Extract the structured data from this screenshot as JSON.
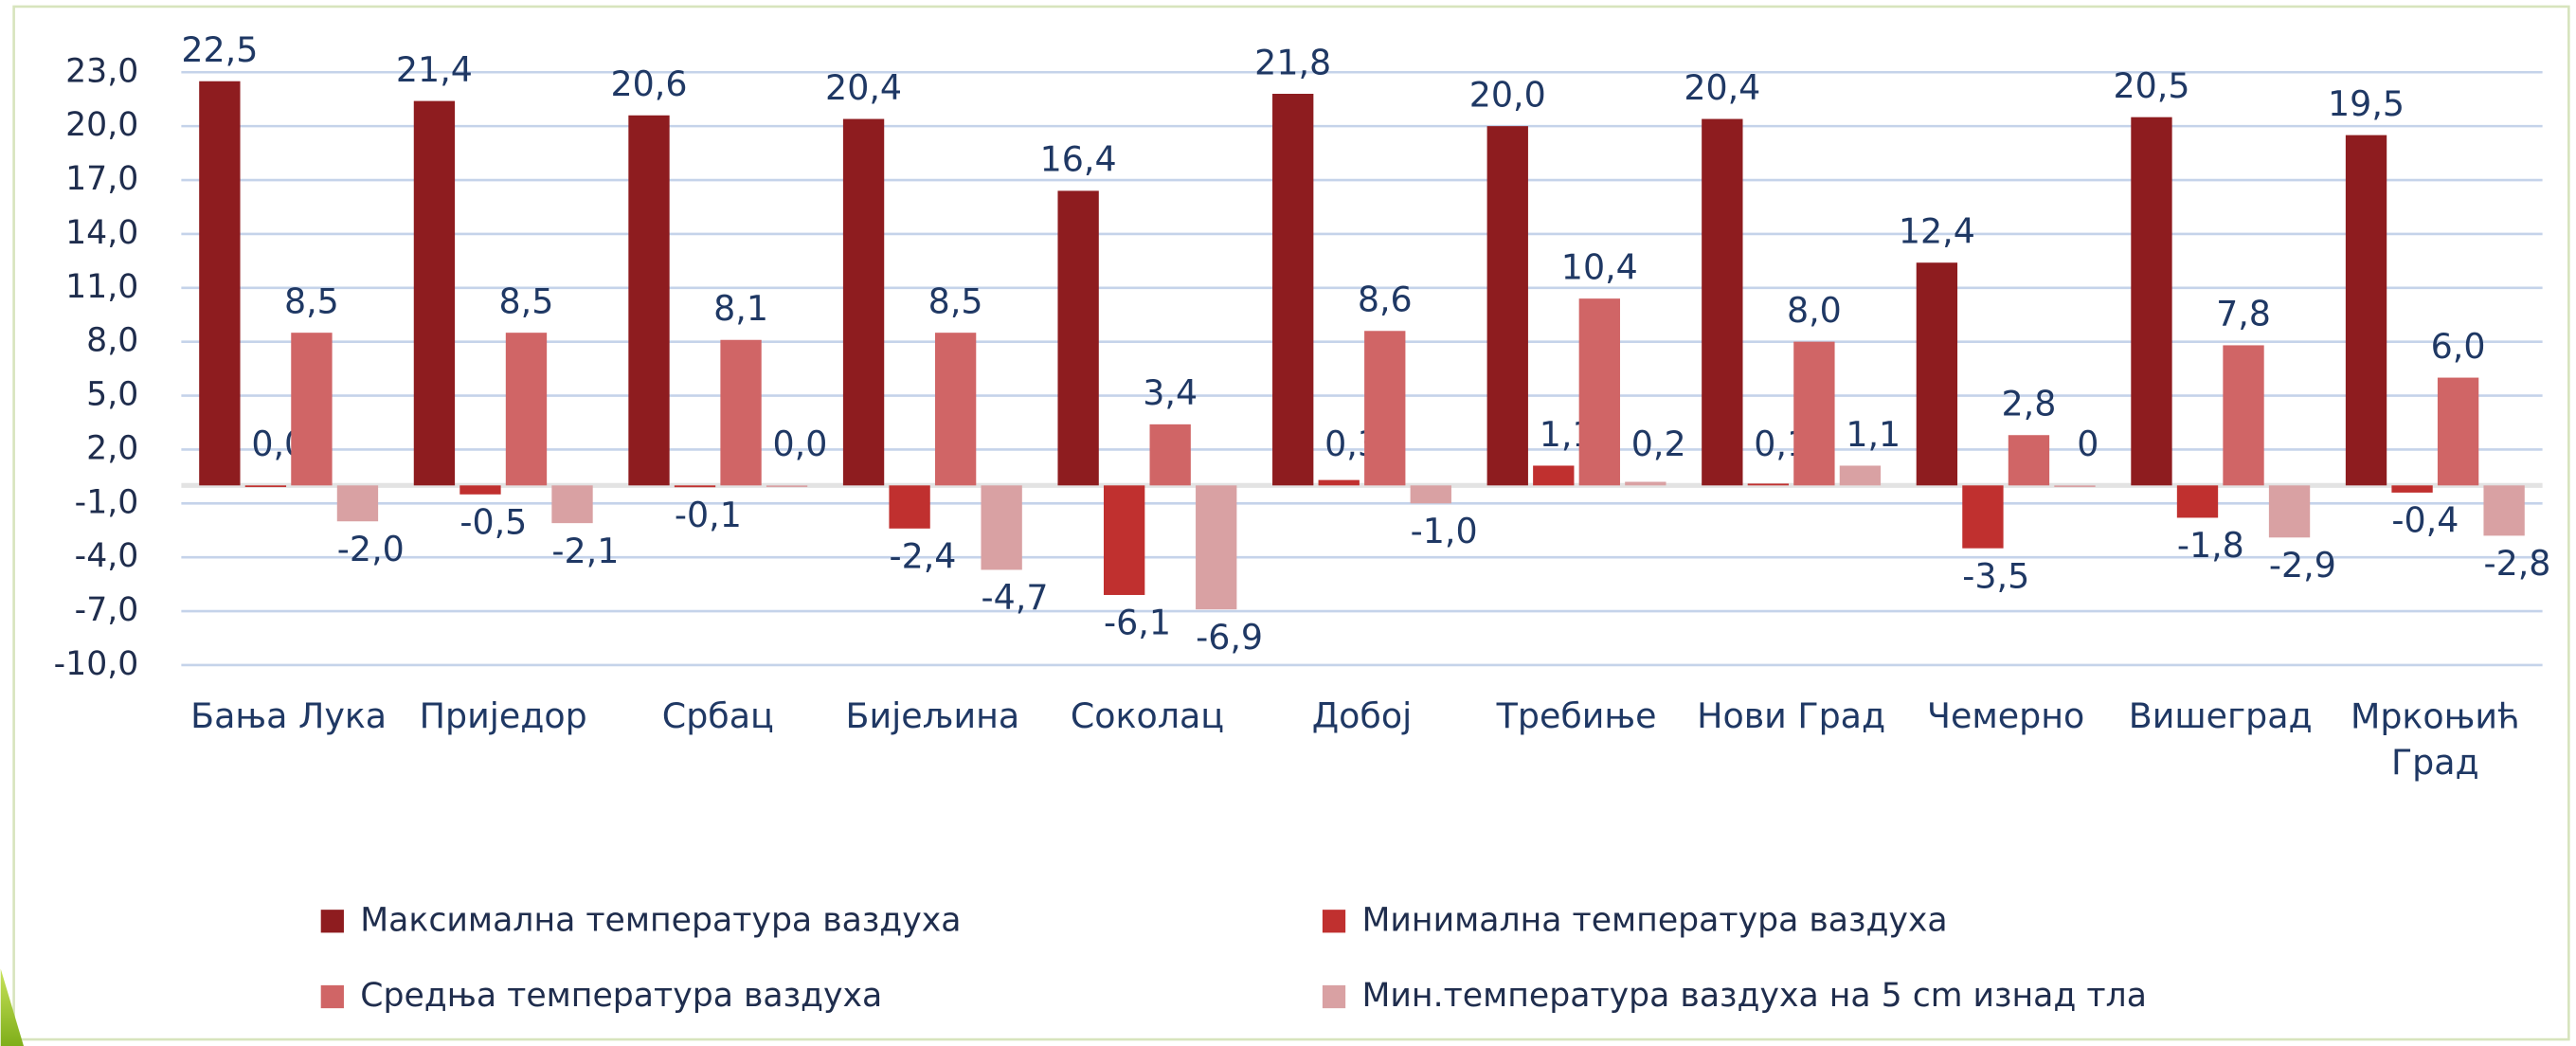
{
  "chart_data": {
    "type": "bar",
    "categories": [
      "Бања Лука",
      "Приједор",
      "Србац",
      "Бијељина",
      "Соколац",
      "Добој",
      "Требиње",
      "Нови Град",
      "Чемерно",
      "Вишеград",
      "Мркоњић Град"
    ],
    "series": [
      {
        "name": "Максимална температура ваздуха",
        "color": "#8e1c1f",
        "values": [
          22.5,
          21.4,
          20.6,
          20.4,
          16.4,
          21.8,
          20.0,
          20.4,
          12.4,
          20.5,
          19.5
        ],
        "value_labels": [
          "22,5",
          "21,4",
          "20,6",
          "20,4",
          "16,4",
          "21,8",
          "20,0",
          "20,4",
          "12,4",
          "20,5",
          "19,5"
        ]
      },
      {
        "name": "Минимална температура ваздуха",
        "color": "#c0302f",
        "values": [
          0.0,
          -0.5,
          -0.1,
          -2.4,
          -6.1,
          0.3,
          1.1,
          0.1,
          -3.5,
          -1.8,
          -0.4
        ],
        "value_labels": [
          "0,0",
          "-0,5",
          "-0,1",
          "-2,4",
          "-6,1",
          "0,3",
          "1,1",
          "0,1",
          "-3,5",
          "-1,8",
          "-0,4"
        ]
      },
      {
        "name": "Средња температура ваздуха",
        "color": "#d06566",
        "values": [
          8.5,
          8.5,
          8.1,
          8.5,
          3.4,
          8.6,
          10.4,
          8.0,
          2.8,
          7.8,
          6.0
        ],
        "value_labels": [
          "8,5",
          "8,5",
          "8,1",
          "8,5",
          "3,4",
          "8,6",
          "10,4",
          "8,0",
          "2,8",
          "7,8",
          "6,0"
        ]
      },
      {
        "name": "Мин.температура ваздуха на 5 cm изнад тла",
        "color": "#d9a1a3",
        "values": [
          -2.0,
          -2.1,
          0.0,
          -4.7,
          -6.9,
          -1.0,
          0.2,
          1.1,
          0,
          -2.9,
          -2.8
        ],
        "value_labels": [
          "-2,0",
          "-2,1",
          "0,0",
          "-4,7",
          "-6,9",
          "-1,0",
          "0,2",
          "1,1",
          "0",
          "-2,9",
          "-2,8"
        ]
      }
    ],
    "ylim": [
      -10,
      23
    ],
    "yticks": [
      {
        "value": 23,
        "label": "23,0"
      },
      {
        "value": 20,
        "label": "20,0"
      },
      {
        "value": 17,
        "label": "17,0"
      },
      {
        "value": 14,
        "label": "14,0"
      },
      {
        "value": 11,
        "label": "11,0"
      },
      {
        "value": 8,
        "label": "8,0"
      },
      {
        "value": 5,
        "label": "5,0"
      },
      {
        "value": 2,
        "label": "2,0"
      },
      {
        "value": -1,
        "label": "-1,0"
      },
      {
        "value": -4,
        "label": "-4,0"
      },
      {
        "value": -7,
        "label": "-7,0"
      },
      {
        "value": -10,
        "label": "-10,0"
      }
    ],
    "grid": true,
    "legend": "bottom"
  }
}
